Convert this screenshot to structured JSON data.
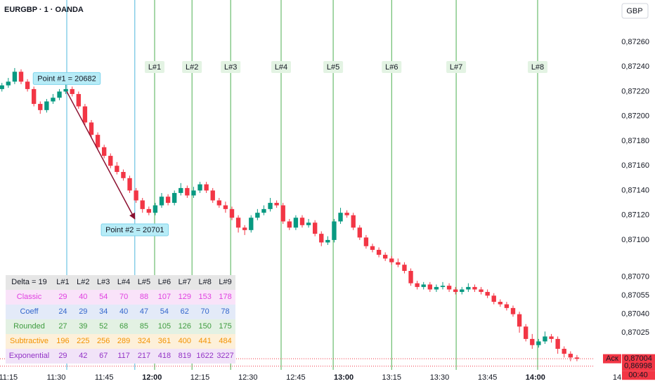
{
  "chart_data": {
    "type": "candlestick",
    "title": "EURGBP · 1 · OANDA",
    "currency_button": "GBP",
    "date_label": "14",
    "xlim": [
      672.4,
      858.3
    ],
    "ylim": [
      0.86995,
      0.87294
    ],
    "xticks": [
      {
        "value": 675,
        "label": "11:15"
      },
      {
        "value": 690,
        "label": "11:30"
      },
      {
        "value": 705,
        "label": "11:45"
      },
      {
        "value": 720,
        "label": "12:00"
      },
      {
        "value": 735,
        "label": "12:15"
      },
      {
        "value": 750,
        "label": "12:30"
      },
      {
        "value": 765,
        "label": "12:45"
      },
      {
        "value": 780,
        "label": "13:00"
      },
      {
        "value": 795,
        "label": "13:15"
      },
      {
        "value": 810,
        "label": "13:30"
      },
      {
        "value": 825,
        "label": "13:45"
      },
      {
        "value": 840,
        "label": "14:00"
      }
    ],
    "yticks": [
      {
        "value": 0.8726,
        "label": "0,87260"
      },
      {
        "value": 0.8724,
        "label": "0,87240"
      },
      {
        "value": 0.8722,
        "label": "0,87220"
      },
      {
        "value": 0.872,
        "label": "0,87200"
      },
      {
        "value": 0.8718,
        "label": "0,87180"
      },
      {
        "value": 0.8716,
        "label": "0,87160"
      },
      {
        "value": 0.8714,
        "label": "0,87140"
      },
      {
        "value": 0.8712,
        "label": "0,87120"
      },
      {
        "value": 0.871,
        "label": "0,87100"
      },
      {
        "value": 0.8707,
        "label": "0,87070"
      },
      {
        "value": 0.87055,
        "label": "0,87055"
      },
      {
        "value": 0.8704,
        "label": "0,87040"
      },
      {
        "value": 0.87025,
        "label": "0,87025"
      }
    ],
    "up_color": "#089981",
    "down_color": "#f23645",
    "candles": [
      [
        673,
        0.87222,
        0.87227,
        0.8722,
        0.87225
      ],
      [
        675,
        0.87225,
        0.87231,
        0.87223,
        0.87228
      ],
      [
        677,
        0.87228,
        0.87239,
        0.87226,
        0.87236
      ],
      [
        679,
        0.87236,
        0.87238,
        0.87226,
        0.87228
      ],
      [
        681,
        0.87228,
        0.8723,
        0.8722,
        0.87222
      ],
      [
        683,
        0.87222,
        0.87224,
        0.87208,
        0.8721
      ],
      [
        685,
        0.8721,
        0.87212,
        0.87202,
        0.87205
      ],
      [
        687,
        0.87205,
        0.87214,
        0.87203,
        0.87212
      ],
      [
        689,
        0.87212,
        0.87218,
        0.8721,
        0.87215
      ],
      [
        691,
        0.87215,
        0.87222,
        0.87213,
        0.8722
      ],
      [
        693,
        0.8722,
        0.87226,
        0.87218,
        0.87222
      ],
      [
        695,
        0.87222,
        0.87224,
        0.87216,
        0.87218
      ],
      [
        697,
        0.87218,
        0.8722,
        0.87206,
        0.87208
      ],
      [
        699,
        0.87208,
        0.8721,
        0.87193,
        0.87195
      ],
      [
        701,
        0.87195,
        0.87197,
        0.87183,
        0.87185
      ],
      [
        703,
        0.87185,
        0.87187,
        0.87173,
        0.87175
      ],
      [
        705,
        0.87175,
        0.87177,
        0.87166,
        0.87168
      ],
      [
        707,
        0.87168,
        0.8717,
        0.87158,
        0.8716
      ],
      [
        709,
        0.8716,
        0.87163,
        0.87153,
        0.87155
      ],
      [
        711,
        0.87155,
        0.87157,
        0.87148,
        0.8715
      ],
      [
        713,
        0.8715,
        0.87152,
        0.87138,
        0.8714
      ],
      [
        715,
        0.8714,
        0.87142,
        0.8713,
        0.87132
      ],
      [
        717,
        0.87132,
        0.87134,
        0.87122,
        0.87125
      ],
      [
        719,
        0.87125,
        0.87127,
        0.8712,
        0.87122
      ],
      [
        721,
        0.87122,
        0.8713,
        0.8712,
        0.87128
      ],
      [
        723,
        0.87128,
        0.87138,
        0.87126,
        0.87135
      ],
      [
        725,
        0.87135,
        0.87137,
        0.87128,
        0.8713
      ],
      [
        727,
        0.8713,
        0.8714,
        0.87128,
        0.87138
      ],
      [
        729,
        0.87138,
        0.87146,
        0.87136,
        0.87142
      ],
      [
        731,
        0.87142,
        0.87144,
        0.87134,
        0.87136
      ],
      [
        733,
        0.87136,
        0.87143,
        0.87134,
        0.8714
      ],
      [
        735,
        0.8714,
        0.87147,
        0.87138,
        0.87145
      ],
      [
        737,
        0.87145,
        0.87147,
        0.87138,
        0.8714
      ],
      [
        739,
        0.8714,
        0.87142,
        0.8713,
        0.87132
      ],
      [
        741,
        0.87132,
        0.87134,
        0.87126,
        0.87128
      ],
      [
        743,
        0.87128,
        0.87131,
        0.87122,
        0.87125
      ],
      [
        745,
        0.87125,
        0.87127,
        0.87116,
        0.87118
      ],
      [
        747,
        0.87118,
        0.8712,
        0.87106,
        0.8711
      ],
      [
        749,
        0.8711,
        0.87112,
        0.87104,
        0.87108
      ],
      [
        751,
        0.87108,
        0.8712,
        0.87106,
        0.87118
      ],
      [
        753,
        0.87118,
        0.87125,
        0.87116,
        0.87122
      ],
      [
        755,
        0.87122,
        0.87128,
        0.8712,
        0.87125
      ],
      [
        757,
        0.87125,
        0.87134,
        0.87123,
        0.8713
      ],
      [
        759,
        0.8713,
        0.87132,
        0.87126,
        0.87128
      ],
      [
        761,
        0.87128,
        0.8713,
        0.87113,
        0.87115
      ],
      [
        763,
        0.87115,
        0.87117,
        0.87108,
        0.8711
      ],
      [
        765,
        0.8711,
        0.8712,
        0.87108,
        0.87118
      ],
      [
        767,
        0.87118,
        0.8712,
        0.8711,
        0.87112
      ],
      [
        769,
        0.87112,
        0.87117,
        0.8711,
        0.87114
      ],
      [
        771,
        0.87114,
        0.87116,
        0.87103,
        0.87105
      ],
      [
        773,
        0.87105,
        0.87107,
        0.87095,
        0.87098
      ],
      [
        775,
        0.87098,
        0.87103,
        0.87096,
        0.871
      ],
      [
        777,
        0.871,
        0.87117,
        0.87098,
        0.87115
      ],
      [
        779,
        0.87115,
        0.87126,
        0.87113,
        0.87122
      ],
      [
        781,
        0.87122,
        0.87124,
        0.87118,
        0.8712
      ],
      [
        783,
        0.8712,
        0.87122,
        0.87108,
        0.8711
      ],
      [
        785,
        0.8711,
        0.87112,
        0.871,
        0.87102
      ],
      [
        787,
        0.87102,
        0.87104,
        0.87093,
        0.87095
      ],
      [
        789,
        0.87095,
        0.87097,
        0.8709,
        0.87092
      ],
      [
        791,
        0.87092,
        0.87094,
        0.87086,
        0.87088
      ],
      [
        793,
        0.87088,
        0.8709,
        0.87083,
        0.87085
      ],
      [
        795,
        0.87085,
        0.87087,
        0.8708,
        0.87082
      ],
      [
        797,
        0.87082,
        0.87085,
        0.87078,
        0.8708
      ],
      [
        799,
        0.8708,
        0.87082,
        0.87073,
        0.87075
      ],
      [
        801,
        0.87075,
        0.87077,
        0.87063,
        0.87065
      ],
      [
        803,
        0.87065,
        0.87067,
        0.8706,
        0.87062
      ],
      [
        805,
        0.87062,
        0.87066,
        0.8706,
        0.87064
      ],
      [
        807,
        0.87064,
        0.87066,
        0.87058,
        0.8706
      ],
      [
        809,
        0.8706,
        0.87064,
        0.87058,
        0.87062
      ],
      [
        811,
        0.87062,
        0.87066,
        0.8706,
        0.87063
      ],
      [
        813,
        0.87063,
        0.87065,
        0.87058,
        0.8706
      ],
      [
        815,
        0.8706,
        0.87062,
        0.87056,
        0.87058
      ],
      [
        817,
        0.87058,
        0.87062,
        0.87056,
        0.8706
      ],
      [
        819,
        0.8706,
        0.87065,
        0.87058,
        0.87062
      ],
      [
        821,
        0.87062,
        0.87064,
        0.87058,
        0.8706
      ],
      [
        823,
        0.8706,
        0.87062,
        0.87056,
        0.87058
      ],
      [
        825,
        0.87058,
        0.8706,
        0.87053,
        0.87055
      ],
      [
        827,
        0.87055,
        0.87057,
        0.87048,
        0.8705
      ],
      [
        829,
        0.8705,
        0.87052,
        0.87046,
        0.87048
      ],
      [
        831,
        0.87048,
        0.8705,
        0.87043,
        0.87045
      ],
      [
        833,
        0.87045,
        0.87047,
        0.87038,
        0.8704
      ],
      [
        835,
        0.8704,
        0.87042,
        0.87025,
        0.8703
      ],
      [
        837,
        0.8703,
        0.87032,
        0.87018,
        0.8702
      ],
      [
        839,
        0.8702,
        0.87024,
        0.87012,
        0.87015
      ],
      [
        841,
        0.87015,
        0.8702,
        0.87013,
        0.87018
      ],
      [
        843,
        0.87018,
        0.87026,
        0.87016,
        0.87022
      ],
      [
        845,
        0.87022,
        0.87024,
        0.87017,
        0.8702
      ],
      [
        847,
        0.8702,
        0.87022,
        0.87008,
        0.87012
      ],
      [
        849,
        0.87012,
        0.87014,
        0.87005,
        0.87008
      ],
      [
        851,
        0.87008,
        0.8701,
        0.87002,
        0.87005
      ],
      [
        853,
        0.87005,
        0.87007,
        0.87002,
        0.87004
      ]
    ],
    "points": [
      {
        "label": "Point #1 = 20682",
        "time": 693.3,
        "price": 0.8722
      },
      {
        "label": "Point #2 = 20701",
        "time": 714.6,
        "price": 0.87117
      }
    ],
    "point_color": "#4fb8dc",
    "arrow_color": "#8b1030",
    "levels": [
      {
        "label": "L#1",
        "time": 720.8
      },
      {
        "label": "L#2",
        "time": 732.5
      },
      {
        "label": "L#3",
        "time": 744.6
      },
      {
        "label": "L#4",
        "time": 760.4
      },
      {
        "label": "L#5",
        "time": 776.7
      },
      {
        "label": "L#6",
        "time": 795.0
      },
      {
        "label": "L#7",
        "time": 815.2
      },
      {
        "label": "L#8",
        "time": 840.7
      }
    ],
    "level_color": "#4caf50",
    "price_lines": [
      {
        "value": 0.87004,
        "label": "0,87004",
        "tag": "Аск"
      },
      {
        "value": 0.86998,
        "label": "0,86998"
      }
    ],
    "countdown": "00:40",
    "price_line_color": "#f23645"
  },
  "table": {
    "header": [
      "Delta = 19",
      "L#1",
      "L#2",
      "L#3",
      "L#4",
      "L#5",
      "L#6",
      "L#7",
      "L#8",
      "L#9"
    ],
    "rows": [
      {
        "name": "Classic",
        "color": "#e040e0",
        "background": "#f9e3f9",
        "values": [
          "29",
          "40",
          "54",
          "70",
          "88",
          "107",
          "129",
          "153",
          "178"
        ]
      },
      {
        "name": "Coeff",
        "color": "#3366cc",
        "background": "#e3eaf8",
        "values": [
          "24",
          "29",
          "34",
          "40",
          "47",
          "54",
          "62",
          "70",
          "78"
        ]
      },
      {
        "name": "Rounded",
        "color": "#3f9c3f",
        "background": "#e3f1e3",
        "values": [
          "27",
          "39",
          "52",
          "68",
          "85",
          "105",
          "126",
          "150",
          "175"
        ]
      },
      {
        "name": "Subtractive",
        "color": "#f39200",
        "background": "#fdf0d9",
        "values": [
          "196",
          "225",
          "256",
          "289",
          "324",
          "361",
          "400",
          "441",
          "484"
        ]
      },
      {
        "name": "Exponential",
        "color": "#9333c6",
        "background": "#f1e3f8",
        "values": [
          "29",
          "42",
          "67",
          "117",
          "217",
          "418",
          "819",
          "1622",
          "3227"
        ]
      }
    ]
  }
}
